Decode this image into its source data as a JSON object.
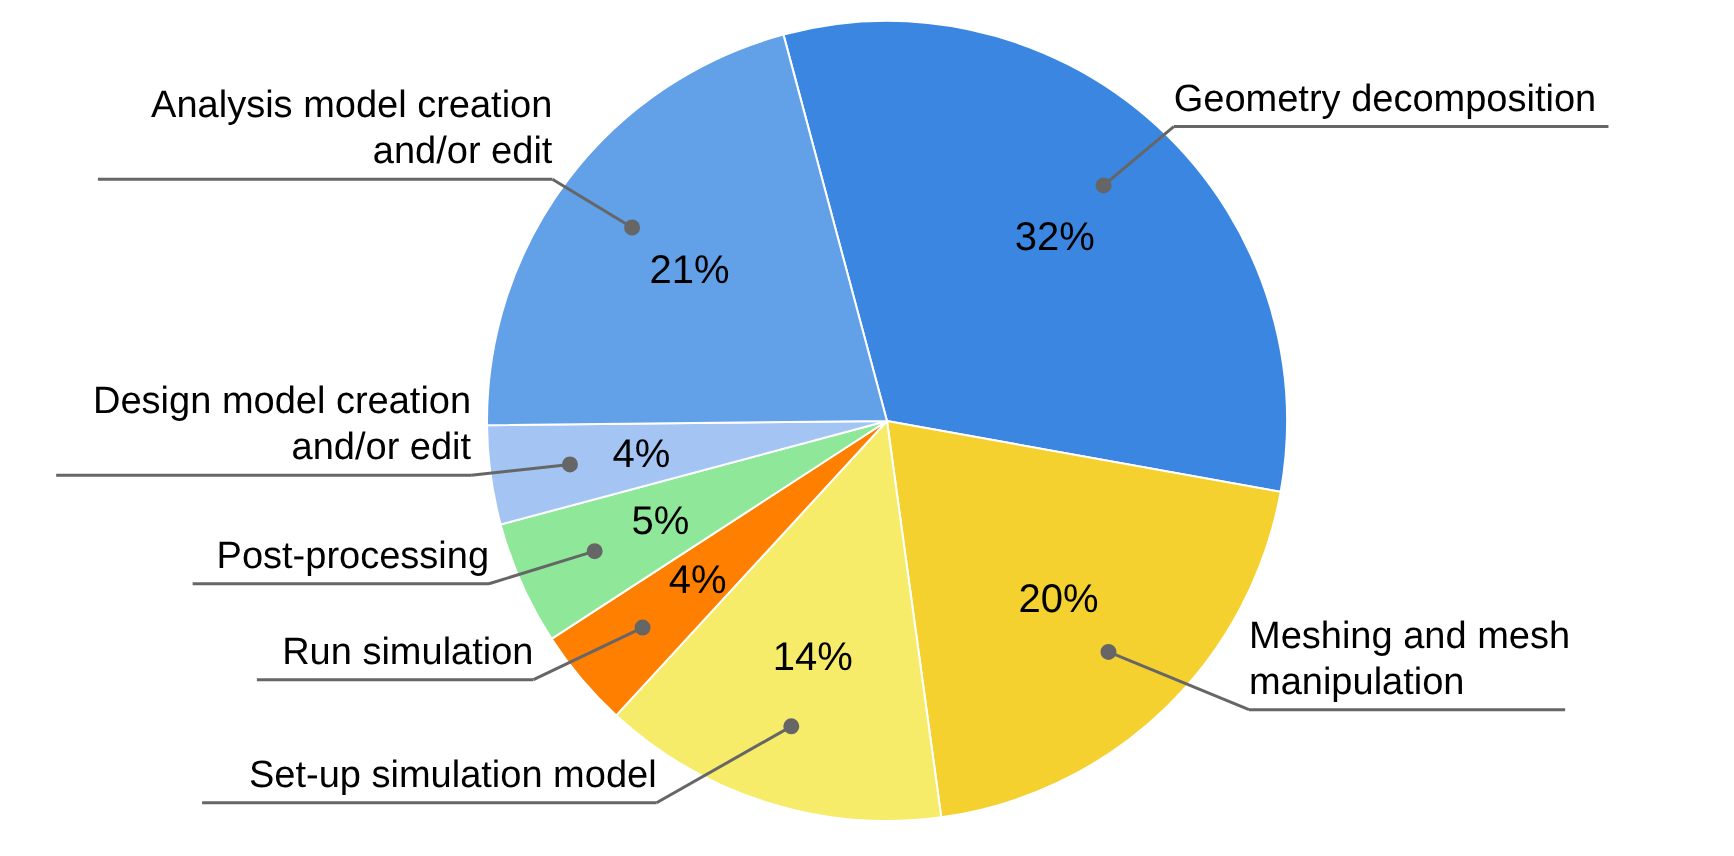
{
  "chart_data": {
    "type": "pie",
    "categories": [
      "Geometry decomposition",
      "Meshing and mesh manipulation",
      "Set-up simulation model",
      "Run simulation",
      "Post-processing",
      "Design model creation and/or edit",
      "Analysis model creation and/or edit"
    ],
    "values": [
      32,
      20,
      14,
      4,
      5,
      4,
      21
    ],
    "value_labels": [
      "32%",
      "20%",
      "14%",
      "4%",
      "5%",
      "4%",
      "21%"
    ],
    "colors": [
      "#3a86e0",
      "#f5d130",
      "#f7ec6a",
      "#ff7f00",
      "#8fe89a",
      "#a4c4f4",
      "#62a0e8"
    ]
  }
}
